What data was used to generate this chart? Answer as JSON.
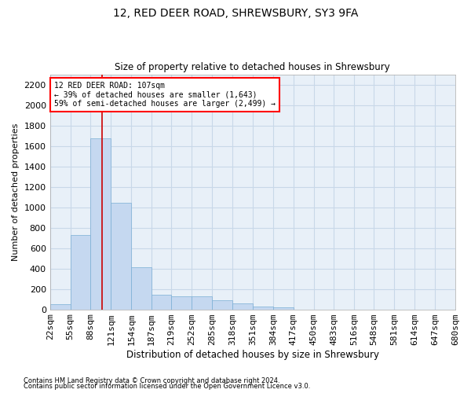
{
  "title1": "12, RED DEER ROAD, SHREWSBURY, SY3 9FA",
  "title2": "Size of property relative to detached houses in Shrewsbury",
  "xlabel": "Distribution of detached houses by size in Shrewsbury",
  "ylabel": "Number of detached properties",
  "footnote1": "Contains HM Land Registry data © Crown copyright and database right 2024.",
  "footnote2": "Contains public sector information licensed under the Open Government Licence v3.0.",
  "bar_color": "#c5d8f0",
  "bar_edge_color": "#7aaed4",
  "grid_color": "#c8d8e8",
  "background_color": "#e8f0f8",
  "subject_line_color": "#cc0000",
  "subject_value": 107,
  "annotation_line1": "12 RED DEER ROAD: 107sqm",
  "annotation_line2": "← 39% of detached houses are smaller (1,643)",
  "annotation_line3": "59% of semi-detached houses are larger (2,499) →",
  "bin_edges": [
    22,
    55,
    88,
    121,
    154,
    187,
    219,
    252,
    285,
    318,
    351,
    384,
    417,
    450,
    483,
    516,
    548,
    581,
    614,
    647,
    680
  ],
  "bar_heights": [
    50,
    730,
    1670,
    1040,
    410,
    140,
    130,
    130,
    90,
    60,
    30,
    20,
    0,
    0,
    0,
    0,
    0,
    0,
    0,
    0
  ],
  "ylim": [
    0,
    2300
  ],
  "yticks": [
    0,
    200,
    400,
    600,
    800,
    1000,
    1200,
    1400,
    1600,
    1800,
    2000,
    2200
  ],
  "bin_labels": [
    "22sqm",
    "55sqm",
    "88sqm",
    "121sqm",
    "154sqm",
    "187sqm",
    "219sqm",
    "252sqm",
    "285sqm",
    "318sqm",
    "351sqm",
    "384sqm",
    "417sqm",
    "450sqm",
    "483sqm",
    "516sqm",
    "548sqm",
    "581sqm",
    "614sqm",
    "647sqm",
    "680sqm"
  ]
}
